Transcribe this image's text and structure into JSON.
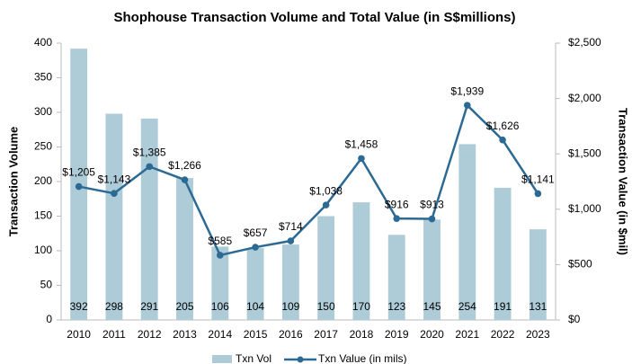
{
  "chart_data": {
    "type": "bar",
    "title": "Shophouse Transaction Volume and Total Value (in S$millions)",
    "ylabel": "Transaction Volume",
    "y2label": "Transaction Value (in $mil)",
    "categories": [
      "2010",
      "2011",
      "2012",
      "2013",
      "2014",
      "2015",
      "2016",
      "2017",
      "2018",
      "2019",
      "2020",
      "2021",
      "2022",
      "2023"
    ],
    "series": [
      {
        "name": "Txn Vol",
        "type": "bar",
        "color": "#aecbd8",
        "values": [
          392,
          298,
          291,
          205,
          106,
          104,
          109,
          150,
          170,
          123,
          145,
          254,
          191,
          131
        ]
      },
      {
        "name": "Txn Value (in mils)",
        "type": "line",
        "axis": "y2",
        "color": "#2c6a94",
        "values": [
          1205,
          1143,
          1385,
          1266,
          585,
          657,
          714,
          1038,
          1458,
          916,
          913,
          1939,
          1626,
          1141
        ],
        "value_labels": [
          "$1,205",
          "$1,143",
          "$1,385",
          "$1,266",
          "$585",
          "$657",
          "$714",
          "$1,038",
          "$1,458",
          "$916",
          "$913",
          "$1,939",
          "$1,626",
          "$1,141"
        ]
      }
    ],
    "ylim": [
      0,
      400
    ],
    "yticks": [
      0,
      50,
      100,
      150,
      200,
      250,
      300,
      350,
      400
    ],
    "y2lim": [
      0,
      2500
    ],
    "y2ticks": [
      {
        "value": 0,
        "label": "$0"
      },
      {
        "value": 500,
        "label": "$500"
      },
      {
        "value": 1000,
        "label": "$1,000"
      },
      {
        "value": 1500,
        "label": "$1,500"
      },
      {
        "value": 2000,
        "label": "$2,000"
      },
      {
        "value": 2500,
        "label": "$2,500"
      }
    ],
    "legend": "bottom"
  }
}
